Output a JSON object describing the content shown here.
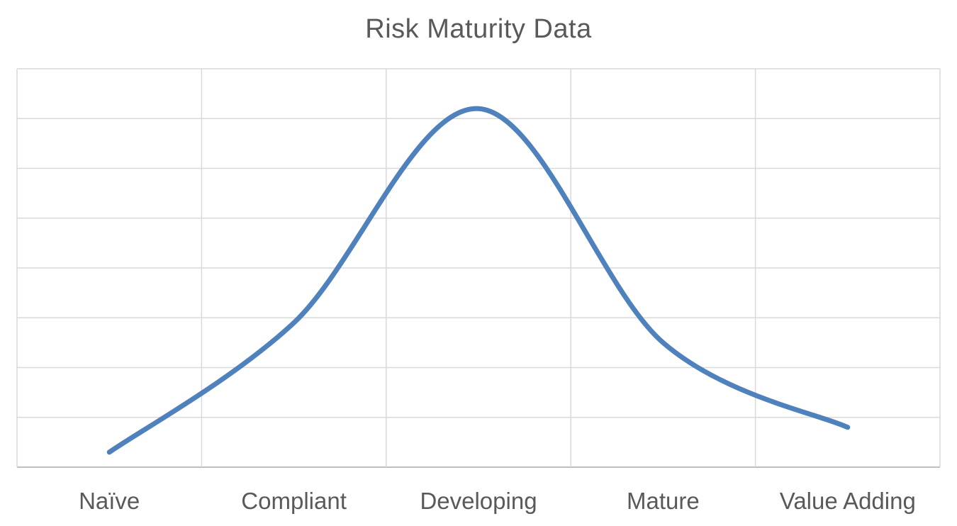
{
  "chart_data": {
    "type": "line",
    "title": "Risk Maturity Data",
    "xlabel": "",
    "ylabel": "",
    "categories": [
      "Naïve",
      "Compliant",
      "Developing",
      "Mature",
      "Value Adding"
    ],
    "series": [
      {
        "values": [
          0.3,
          2.9,
          7.2,
          2.5,
          0.8
        ],
        "color": "#4F81BD",
        "smooth": true
      }
    ],
    "ylim": [
      0,
      8
    ],
    "grid": true,
    "legend": "none"
  }
}
